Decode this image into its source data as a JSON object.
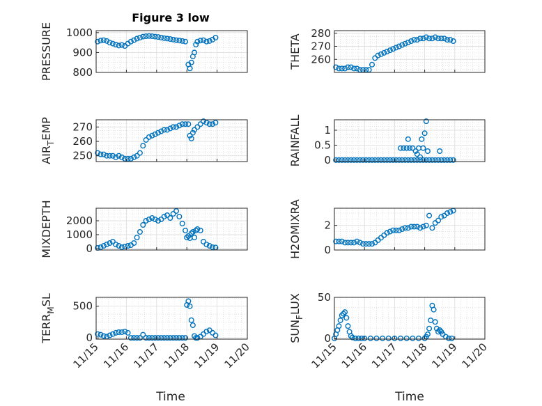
{
  "title": "Figure 3 low",
  "xlabel": "Time",
  "colors": {
    "marker": "#0072bd",
    "axis": "#262626",
    "grid": "#dfdfdf",
    "minor_grid": "#cfcfcf"
  },
  "chart_data": [
    {
      "type": "scatter",
      "ylabel": "PRESSURE",
      "title": "Figure 3 low",
      "xlim": [
        0,
        5
      ],
      "ylim": [
        800,
        1010
      ],
      "yticks": [
        800,
        900,
        1000
      ],
      "x": [
        0.05,
        0.15,
        0.25,
        0.35,
        0.45,
        0.55,
        0.65,
        0.75,
        0.85,
        0.95,
        1.05,
        1.15,
        1.25,
        1.35,
        1.45,
        1.55,
        1.65,
        1.75,
        1.85,
        1.95,
        2.05,
        2.15,
        2.25,
        2.35,
        2.45,
        2.55,
        2.65,
        2.75,
        2.85,
        2.95,
        3.05,
        3.1,
        3.15,
        3.2,
        3.25,
        3.3,
        3.35,
        3.45,
        3.55,
        3.65,
        3.75,
        3.85,
        3.95
      ],
      "y": [
        955,
        960,
        962,
        958,
        950,
        945,
        940,
        935,
        938,
        933,
        945,
        955,
        962,
        970,
        975,
        980,
        982,
        983,
        982,
        980,
        978,
        975,
        972,
        970,
        968,
        965,
        962,
        960,
        958,
        955,
        840,
        820,
        850,
        880,
        900,
        940,
        955,
        960,
        962,
        955,
        958,
        965,
        975
      ]
    },
    {
      "type": "scatter",
      "ylabel": "THETA",
      "xlim": [
        0,
        5
      ],
      "ylim": [
        250,
        282
      ],
      "yticks": [
        260,
        270,
        280
      ],
      "x": [
        0.05,
        0.15,
        0.25,
        0.35,
        0.45,
        0.55,
        0.65,
        0.75,
        0.85,
        0.95,
        1.05,
        1.15,
        1.25,
        1.35,
        1.45,
        1.55,
        1.65,
        1.75,
        1.85,
        1.95,
        2.05,
        2.15,
        2.25,
        2.35,
        2.45,
        2.55,
        2.65,
        2.75,
        2.85,
        2.95,
        3.05,
        3.15,
        3.25,
        3.35,
        3.45,
        3.55,
        3.65,
        3.75,
        3.85,
        3.95
      ],
      "y": [
        254,
        253,
        253,
        253,
        254,
        254,
        253,
        253,
        252,
        252,
        252,
        252,
        256,
        261,
        263,
        264,
        265,
        266,
        267,
        268,
        269,
        270,
        271,
        272,
        273,
        274,
        275,
        275,
        276,
        276,
        277,
        276,
        276,
        277,
        276,
        276,
        276,
        275,
        275,
        274
      ]
    },
    {
      "type": "scatter",
      "ylabel_main": "AIR",
      "ylabel_sub": "T",
      "ylabel_tail": "EMP",
      "xlim": [
        0,
        5
      ],
      "ylim": [
        246,
        275
      ],
      "yticks": [
        250,
        260,
        270
      ],
      "x": [
        0.05,
        0.15,
        0.25,
        0.35,
        0.45,
        0.55,
        0.65,
        0.75,
        0.85,
        0.95,
        1.05,
        1.15,
        1.25,
        1.35,
        1.45,
        1.55,
        1.65,
        1.75,
        1.85,
        1.95,
        2.05,
        2.15,
        2.25,
        2.35,
        2.45,
        2.55,
        2.65,
        2.75,
        2.85,
        2.95,
        3.05,
        3.1,
        3.15,
        3.2,
        3.25,
        3.35,
        3.45,
        3.55,
        3.65,
        3.75,
        3.85,
        3.95
      ],
      "y": [
        252,
        251,
        251,
        250,
        250,
        250,
        249,
        250,
        249,
        248,
        248,
        248,
        249,
        250,
        252,
        257,
        261,
        263,
        264,
        265,
        266,
        267,
        268,
        268,
        269,
        270,
        270,
        271,
        272,
        272,
        272,
        264,
        262,
        266,
        268,
        270,
        272,
        274,
        273,
        272,
        272,
        273
      ]
    },
    {
      "type": "scatter",
      "ylabel": "RAINFALL",
      "xlim": [
        0,
        5
      ],
      "ylim": [
        -0.05,
        1.35
      ],
      "yticks": [
        0,
        0.5,
        1
      ],
      "x": [
        0.05,
        0.15,
        0.25,
        0.35,
        0.45,
        0.55,
        0.65,
        0.75,
        0.85,
        0.95,
        1.05,
        1.15,
        1.25,
        1.35,
        1.45,
        1.55,
        1.65,
        1.75,
        1.85,
        1.95,
        2.05,
        2.15,
        2.25,
        2.35,
        2.45,
        2.55,
        2.65,
        2.75,
        2.85,
        2.95,
        3.05,
        3.15,
        3.25,
        3.35,
        3.45,
        3.55,
        3.65,
        3.75,
        3.85,
        3.95,
        2.2,
        2.3,
        2.4,
        2.45,
        2.5,
        2.6,
        2.7,
        2.75,
        2.8,
        2.85,
        2.9,
        2.95,
        3.0,
        3.05,
        3.1,
        3.5
      ],
      "y": [
        0,
        0,
        0,
        0,
        0,
        0,
        0,
        0,
        0,
        0,
        0,
        0,
        0,
        0,
        0,
        0,
        0,
        0,
        0,
        0,
        0,
        0,
        0,
        0,
        0,
        0,
        0,
        0,
        0,
        0,
        0,
        0,
        0,
        0,
        0,
        0,
        0,
        0,
        0,
        0,
        0.4,
        0.4,
        0.4,
        0.7,
        0.4,
        0.4,
        0.3,
        0.2,
        0.4,
        0.1,
        0.7,
        0.4,
        0.9,
        1.3,
        0.3,
        0.3
      ]
    },
    {
      "type": "scatter",
      "ylabel": "MIXDEPTH",
      "xlim": [
        0,
        5
      ],
      "ylim": [
        -100,
        2900
      ],
      "yticks": [
        0,
        1000,
        2000
      ],
      "x": [
        0.05,
        0.15,
        0.25,
        0.35,
        0.45,
        0.55,
        0.65,
        0.75,
        0.85,
        0.95,
        1.05,
        1.15,
        1.25,
        1.35,
        1.45,
        1.55,
        1.65,
        1.75,
        1.85,
        1.95,
        2.05,
        2.15,
        2.25,
        2.35,
        2.45,
        2.55,
        2.65,
        2.75,
        2.85,
        2.95,
        3.0,
        3.05,
        3.1,
        3.15,
        3.2,
        3.25,
        3.3,
        3.35,
        3.45,
        3.55,
        3.65,
        3.75,
        3.85,
        3.95
      ],
      "y": [
        50,
        100,
        200,
        300,
        400,
        500,
        300,
        200,
        100,
        150,
        200,
        250,
        400,
        800,
        1200,
        1700,
        2000,
        2100,
        2200,
        2100,
        2000,
        2100,
        2300,
        2400,
        2200,
        2500,
        2700,
        2300,
        1800,
        1300,
        800,
        900,
        750,
        1100,
        1200,
        800,
        1300,
        1400,
        1300,
        500,
        300,
        200,
        100,
        80
      ]
    },
    {
      "type": "scatter",
      "ylabel": "H2OMIXRA",
      "xlim": [
        0,
        5
      ],
      "ylim": [
        0,
        3.4
      ],
      "yticks": [
        0,
        2
      ],
      "x": [
        0.05,
        0.15,
        0.25,
        0.35,
        0.45,
        0.55,
        0.65,
        0.75,
        0.85,
        0.95,
        1.05,
        1.15,
        1.25,
        1.35,
        1.45,
        1.55,
        1.65,
        1.75,
        1.85,
        1.95,
        2.05,
        2.15,
        2.25,
        2.35,
        2.45,
        2.55,
        2.65,
        2.75,
        2.85,
        2.95,
        3.05,
        3.15,
        3.25,
        3.35,
        3.45,
        3.55,
        3.65,
        3.75,
        3.85,
        3.95
      ],
      "y": [
        0.7,
        0.7,
        0.7,
        0.6,
        0.6,
        0.6,
        0.6,
        0.7,
        0.6,
        0.5,
        0.5,
        0.5,
        0.5,
        0.6,
        0.8,
        1.0,
        1.2,
        1.4,
        1.5,
        1.6,
        1.6,
        1.6,
        1.7,
        1.8,
        1.8,
        1.9,
        1.9,
        1.9,
        1.8,
        1.9,
        2.0,
        2.8,
        1.8,
        2.2,
        2.4,
        2.7,
        2.8,
        3.0,
        3.1,
        3.2
      ]
    },
    {
      "type": "scatter",
      "ylabel_main": "TERR",
      "ylabel_sub": "M",
      "ylabel_tail": "SL",
      "xlim": [
        0,
        5
      ],
      "ylim": [
        -20,
        640
      ],
      "yticks": [
        0,
        500
      ],
      "xticklabels": [
        "11/15",
        "11/16",
        "11/17",
        "11/18",
        "11/19",
        "11/20"
      ],
      "x": [
        0.05,
        0.15,
        0.25,
        0.35,
        0.45,
        0.55,
        0.65,
        0.75,
        0.85,
        0.95,
        1.05,
        1.15,
        1.25,
        1.35,
        1.45,
        1.55,
        1.65,
        1.75,
        1.85,
        1.95,
        2.05,
        2.15,
        2.25,
        2.35,
        2.45,
        2.55,
        2.65,
        2.75,
        2.85,
        2.95,
        3.0,
        3.05,
        3.1,
        3.15,
        3.2,
        3.25,
        3.3,
        3.35,
        3.45,
        3.55,
        3.65,
        3.75,
        3.85,
        3.95
      ],
      "y": [
        60,
        50,
        30,
        20,
        40,
        60,
        80,
        90,
        90,
        100,
        80,
        0,
        0,
        0,
        0,
        50,
        0,
        0,
        0,
        0,
        0,
        0,
        0,
        0,
        0,
        0,
        0,
        0,
        0,
        0,
        520,
        580,
        500,
        280,
        200,
        30,
        0,
        0,
        20,
        60,
        100,
        120,
        80,
        40
      ]
    },
    {
      "type": "scatter",
      "ylabel_main": "SUN",
      "ylabel_sub": "F",
      "ylabel_tail": "LUX",
      "xlim": [
        0,
        5
      ],
      "ylim": [
        -1,
        50
      ],
      "yticks": [
        0,
        50
      ],
      "xticklabels": [
        "11/15",
        "11/16",
        "11/17",
        "11/18",
        "11/19",
        "11/20"
      ],
      "x": [
        0.0,
        0.05,
        0.1,
        0.15,
        0.2,
        0.25,
        0.3,
        0.35,
        0.4,
        0.45,
        0.5,
        0.55,
        0.6,
        0.7,
        0.8,
        0.9,
        1.0,
        1.2,
        1.4,
        1.6,
        1.8,
        2.0,
        2.2,
        2.4,
        2.6,
        2.8,
        3.0,
        3.05,
        3.1,
        3.15,
        3.2,
        3.25,
        3.3,
        3.35,
        3.4,
        3.45,
        3.5,
        3.55,
        3.6,
        3.7,
        3.8,
        3.9
      ],
      "y": [
        0,
        5,
        10,
        15,
        22,
        28,
        30,
        32,
        25,
        15,
        8,
        3,
        1,
        0,
        0,
        0,
        0,
        0,
        0,
        0,
        0,
        0,
        0,
        0,
        0,
        0,
        0,
        2,
        5,
        12,
        22,
        40,
        35,
        20,
        12,
        8,
        10,
        8,
        5,
        2,
        0,
        0
      ]
    }
  ]
}
